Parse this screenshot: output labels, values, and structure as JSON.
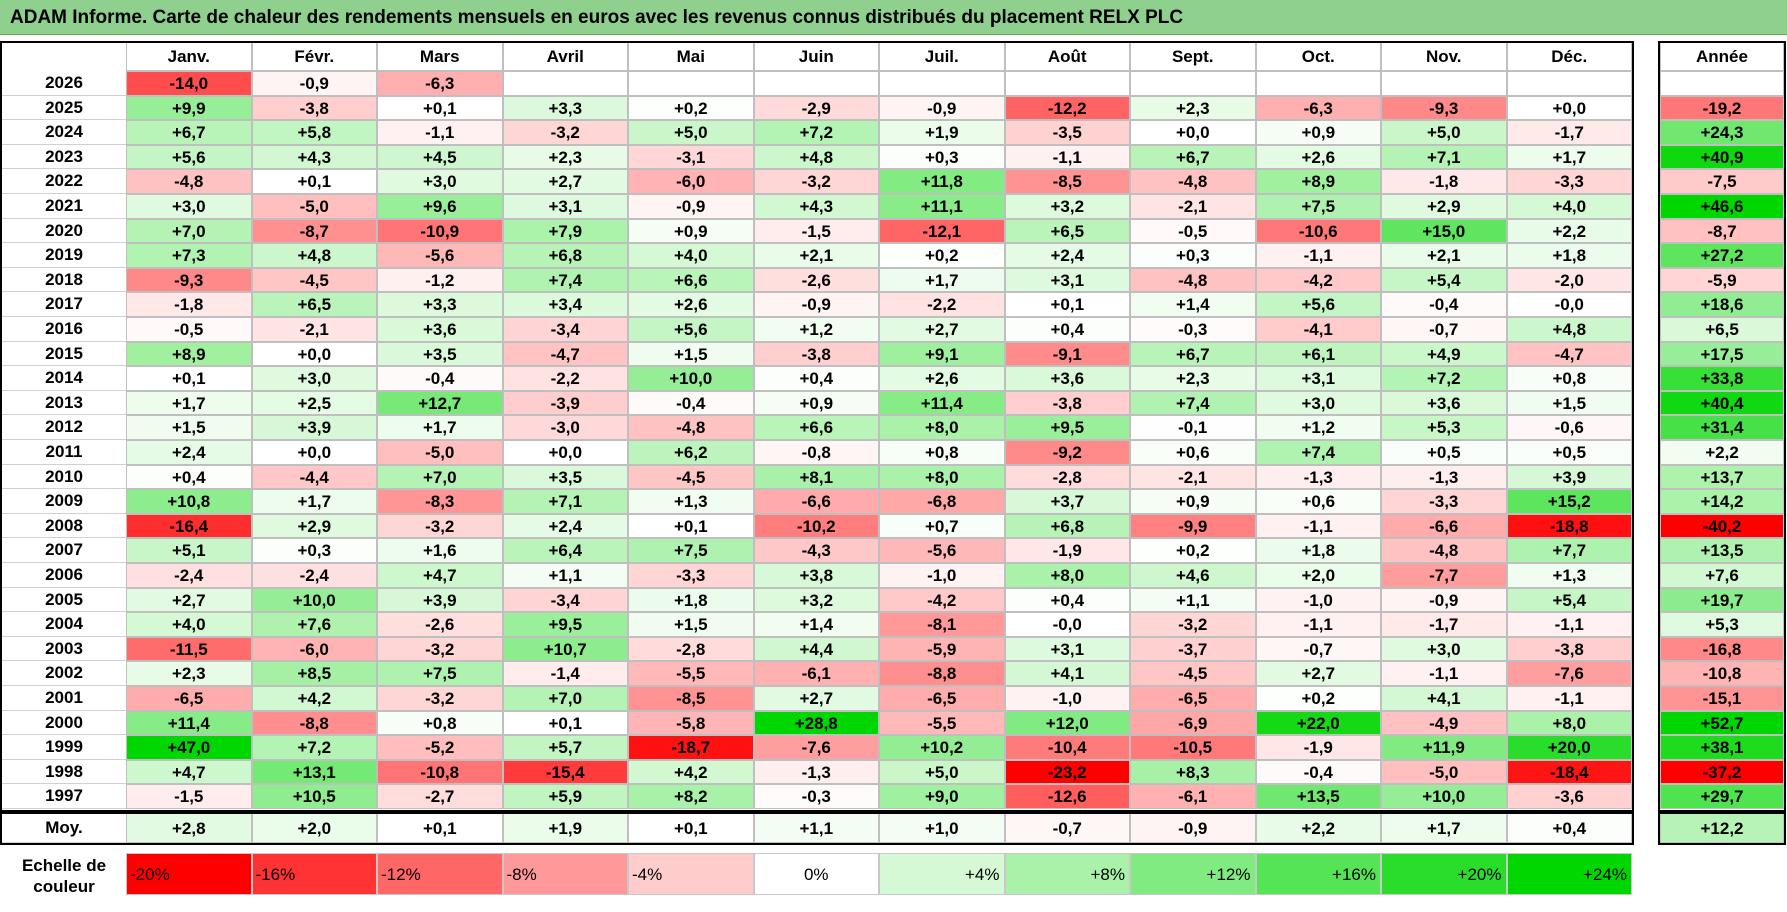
{
  "title": "ADAM Informe. Carte de chaleur des rendements mensuels en euros avec les revenus connus distribués du placement RELX PLC",
  "months": [
    "Janv.",
    "Févr.",
    "Mars",
    "Avril",
    "Mai",
    "Juin",
    "Juil.",
    "Août",
    "Sept.",
    "Oct.",
    "Nov.",
    "Déc."
  ],
  "year_header": "Année",
  "avg_label": "Moy.",
  "scale_label_line1": "Echelle de",
  "scale_label_line2": "couleur",
  "chart_data": {
    "type": "heatmap",
    "title": "ADAM Informe. Carte de chaleur des rendements mensuels en euros avec les revenus connus distribués du placement RELX PLC",
    "columns": [
      "Janv.",
      "Févr.",
      "Mars",
      "Avril",
      "Mai",
      "Juin",
      "Juil.",
      "Août",
      "Sept.",
      "Oct.",
      "Nov.",
      "Déc.",
      "Année"
    ],
    "rows": [
      {
        "year": "2026",
        "values": [
          "-14,0",
          "-0,9",
          "-6,3",
          "",
          "",
          "",
          "",
          "",
          "",
          "",
          "",
          ""
        ],
        "annual": ""
      },
      {
        "year": "2025",
        "values": [
          "+9,9",
          "-3,8",
          "+0,1",
          "+3,3",
          "+0,2",
          "-2,9",
          "-0,9",
          "-12,2",
          "+2,3",
          "-6,3",
          "-9,3",
          "+0,0"
        ],
        "annual": "-19,2"
      },
      {
        "year": "2024",
        "values": [
          "+6,7",
          "+5,8",
          "-1,1",
          "-3,2",
          "+5,0",
          "+7,2",
          "+1,9",
          "-3,5",
          "+0,0",
          "+0,9",
          "+5,0",
          "-1,7"
        ],
        "annual": "+24,3"
      },
      {
        "year": "2023",
        "values": [
          "+5,6",
          "+4,3",
          "+4,5",
          "+2,3",
          "-3,1",
          "+4,8",
          "+0,3",
          "-1,1",
          "+6,7",
          "+2,6",
          "+7,1",
          "+1,7"
        ],
        "annual": "+40,9"
      },
      {
        "year": "2022",
        "values": [
          "-4,8",
          "+0,1",
          "+3,0",
          "+2,7",
          "-6,0",
          "-3,2",
          "+11,8",
          "-8,5",
          "-4,8",
          "+8,9",
          "-1,8",
          "-3,3"
        ],
        "annual": "-7,5"
      },
      {
        "year": "2021",
        "values": [
          "+3,0",
          "-5,0",
          "+9,6",
          "+3,1",
          "-0,9",
          "+4,3",
          "+11,1",
          "+3,2",
          "-2,1",
          "+7,5",
          "+2,9",
          "+4,0"
        ],
        "annual": "+46,6"
      },
      {
        "year": "2020",
        "values": [
          "+7,0",
          "-8,7",
          "-10,9",
          "+7,9",
          "+0,9",
          "-1,5",
          "-12,1",
          "+6,5",
          "-0,5",
          "-10,6",
          "+15,0",
          "+2,2"
        ],
        "annual": "-8,7"
      },
      {
        "year": "2019",
        "values": [
          "+7,3",
          "+4,8",
          "-5,6",
          "+6,8",
          "+4,0",
          "+2,1",
          "+0,2",
          "+2,4",
          "+0,3",
          "-1,1",
          "+2,1",
          "+1,8"
        ],
        "annual": "+27,2"
      },
      {
        "year": "2018",
        "values": [
          "-9,3",
          "-4,5",
          "-1,2",
          "+7,4",
          "+6,6",
          "-2,6",
          "+1,7",
          "+3,1",
          "-4,8",
          "-4,2",
          "+5,4",
          "-2,0"
        ],
        "annual": "-5,9"
      },
      {
        "year": "2017",
        "values": [
          "-1,8",
          "+6,5",
          "+3,3",
          "+3,4",
          "+2,6",
          "-0,9",
          "-2,2",
          "+0,1",
          "+1,4",
          "+5,6",
          "-0,4",
          "-0,0"
        ],
        "annual": "+18,6"
      },
      {
        "year": "2016",
        "values": [
          "-0,5",
          "-2,1",
          "+3,6",
          "-3,4",
          "+5,6",
          "+1,2",
          "+2,7",
          "+0,4",
          "-0,3",
          "-4,1",
          "-0,7",
          "+4,8"
        ],
        "annual": "+6,5"
      },
      {
        "year": "2015",
        "values": [
          "+8,9",
          "+0,0",
          "+3,5",
          "-4,7",
          "+1,5",
          "-3,8",
          "+9,1",
          "-9,1",
          "+6,7",
          "+6,1",
          "+4,9",
          "-4,7"
        ],
        "annual": "+17,5"
      },
      {
        "year": "2014",
        "values": [
          "+0,1",
          "+3,0",
          "-0,4",
          "-2,2",
          "+10,0",
          "+0,4",
          "+2,6",
          "+3,6",
          "+2,3",
          "+3,1",
          "+7,2",
          "+0,8"
        ],
        "annual": "+33,8"
      },
      {
        "year": "2013",
        "values": [
          "+1,7",
          "+2,5",
          "+12,7",
          "-3,9",
          "-0,4",
          "+0,9",
          "+11,4",
          "-3,8",
          "+7,4",
          "+3,0",
          "+3,6",
          "+1,5"
        ],
        "annual": "+40,4"
      },
      {
        "year": "2012",
        "values": [
          "+1,5",
          "+3,9",
          "+1,7",
          "-3,0",
          "-4,8",
          "+6,6",
          "+8,0",
          "+9,5",
          "-0,1",
          "+1,2",
          "+5,3",
          "-0,6"
        ],
        "annual": "+31,4"
      },
      {
        "year": "2011",
        "values": [
          "+2,4",
          "+0,0",
          "-5,0",
          "+0,0",
          "+6,2",
          "-0,8",
          "+0,8",
          "-9,2",
          "+0,6",
          "+7,4",
          "+0,5",
          "+0,5"
        ],
        "annual": "+2,2"
      },
      {
        "year": "2010",
        "values": [
          "+0,4",
          "-4,4",
          "+7,0",
          "+3,5",
          "-4,5",
          "+8,1",
          "+8,0",
          "-2,8",
          "-2,1",
          "-1,3",
          "-1,3",
          "+3,9"
        ],
        "annual": "+13,7"
      },
      {
        "year": "2009",
        "values": [
          "+10,8",
          "+1,7",
          "-8,3",
          "+7,1",
          "+1,3",
          "-6,6",
          "-6,8",
          "+3,7",
          "+0,9",
          "+0,6",
          "-3,3",
          "+15,2"
        ],
        "annual": "+14,2"
      },
      {
        "year": "2008",
        "values": [
          "-16,4",
          "+2,9",
          "-3,2",
          "+2,4",
          "+0,1",
          "-10,2",
          "+0,7",
          "+6,8",
          "-9,9",
          "-1,1",
          "-6,6",
          "-18,8"
        ],
        "annual": "-40,2"
      },
      {
        "year": "2007",
        "values": [
          "+5,1",
          "+0,3",
          "+1,6",
          "+6,4",
          "+7,5",
          "-4,3",
          "-5,6",
          "-1,9",
          "+0,2",
          "+1,8",
          "-4,8",
          "+7,7"
        ],
        "annual": "+13,5"
      },
      {
        "year": "2006",
        "values": [
          "-2,4",
          "-2,4",
          "+4,7",
          "+1,1",
          "-3,3",
          "+3,8",
          "-1,0",
          "+8,0",
          "+4,6",
          "+2,0",
          "-7,7",
          "+1,3"
        ],
        "annual": "+7,6"
      },
      {
        "year": "2005",
        "values": [
          "+2,7",
          "+10,0",
          "+3,9",
          "-3,4",
          "+1,8",
          "+3,2",
          "-4,2",
          "+0,4",
          "+1,1",
          "-1,0",
          "-0,9",
          "+5,4"
        ],
        "annual": "+19,7"
      },
      {
        "year": "2004",
        "values": [
          "+4,0",
          "+7,6",
          "-2,6",
          "+9,5",
          "+1,5",
          "+1,4",
          "-8,1",
          "-0,0",
          "-3,2",
          "-1,1",
          "-1,7",
          "-1,1"
        ],
        "annual": "+5,3"
      },
      {
        "year": "2003",
        "values": [
          "-11,5",
          "-6,0",
          "-3,2",
          "+10,7",
          "-2,8",
          "+4,4",
          "-5,9",
          "+3,1",
          "-3,7",
          "-0,7",
          "+3,0",
          "-3,8"
        ],
        "annual": "-16,8"
      },
      {
        "year": "2002",
        "values": [
          "+2,3",
          "+8,5",
          "+7,5",
          "-1,4",
          "-5,5",
          "-6,1",
          "-8,8",
          "+4,1",
          "-4,5",
          "+2,7",
          "-1,1",
          "-7,6"
        ],
        "annual": "-10,8"
      },
      {
        "year": "2001",
        "values": [
          "-6,5",
          "+4,2",
          "-3,2",
          "+7,0",
          "-8,5",
          "+2,7",
          "-6,5",
          "-1,0",
          "-6,5",
          "+0,2",
          "+4,1",
          "-1,1"
        ],
        "annual": "-15,1"
      },
      {
        "year": "2000",
        "values": [
          "+11,4",
          "-8,8",
          "+0,8",
          "+0,1",
          "-5,8",
          "+28,8",
          "-5,5",
          "+12,0",
          "-6,9",
          "+22,0",
          "-4,9",
          "+8,0"
        ],
        "annual": "+52,7"
      },
      {
        "year": "1999",
        "values": [
          "+47,0",
          "+7,2",
          "-5,2",
          "+5,7",
          "-18,7",
          "-7,6",
          "+10,2",
          "-10,4",
          "-10,5",
          "-1,9",
          "+11,9",
          "+20,0"
        ],
        "annual": "+38,1"
      },
      {
        "year": "1998",
        "values": [
          "+4,7",
          "+13,1",
          "-10,8",
          "-15,4",
          "+4,2",
          "-1,3",
          "+5,0",
          "-23,2",
          "+8,3",
          "-0,4",
          "-5,0",
          "-18,4"
        ],
        "annual": "-37,2"
      },
      {
        "year": "1997",
        "values": [
          "-1,5",
          "+10,5",
          "-2,7",
          "+5,9",
          "+8,2",
          "-0,3",
          "+9,0",
          "-12,6",
          "-6,1",
          "+13,5",
          "+10,0",
          "-3,6"
        ],
        "annual": "+29,7"
      }
    ],
    "average": {
      "values": [
        "+2,8",
        "+2,0",
        "+0,1",
        "+1,9",
        "+0,1",
        "+1,1",
        "+1,0",
        "-0,7",
        "-0,9",
        "+2,2",
        "+1,7",
        "+0,4"
      ],
      "annual": "+12,2"
    },
    "color_scale": [
      {
        "label": "-20%",
        "value": -20,
        "color": "#ff0000"
      },
      {
        "label": "-16%",
        "value": -16,
        "color": "#ff3333"
      },
      {
        "label": "-12%",
        "value": -12,
        "color": "#ff6666"
      },
      {
        "label": "-8%",
        "value": -8,
        "color": "#ff9999"
      },
      {
        "label": "-4%",
        "value": -4,
        "color": "#ffcccc"
      },
      {
        "label": "0%",
        "value": 0,
        "color": "#ffffff"
      },
      {
        "label": "+4%",
        "value": 4,
        "color": "#d5f8d5"
      },
      {
        "label": "+8%",
        "value": 8,
        "color": "#aaf2aa"
      },
      {
        "label": "+12%",
        "value": 12,
        "color": "#80eb80"
      },
      {
        "label": "+16%",
        "value": 16,
        "color": "#55e455"
      },
      {
        "label": "+20%",
        "value": 20,
        "color": "#2bdd2b"
      },
      {
        "label": "+24%",
        "value": 24,
        "color": "#00d600"
      }
    ]
  }
}
